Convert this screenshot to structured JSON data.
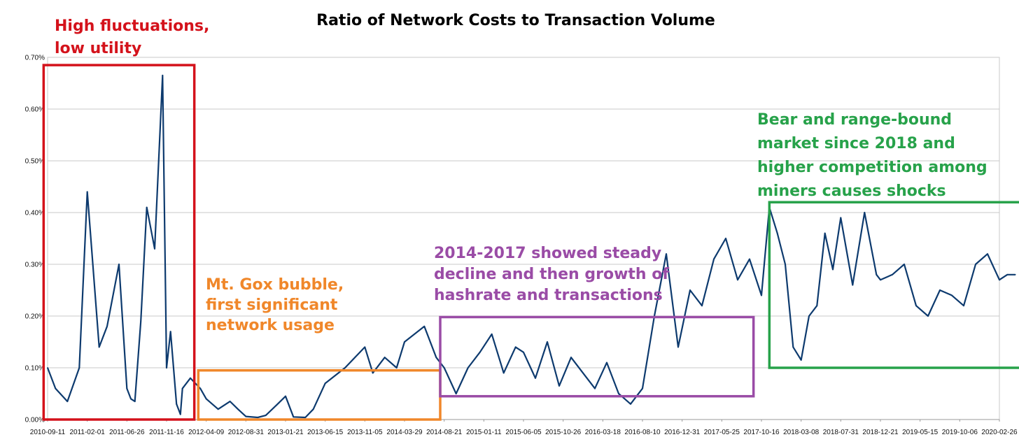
{
  "chart_data": {
    "type": "line",
    "title": "Ratio of Network Costs to Transaction Volume",
    "xlabel": "",
    "ylabel": "",
    "ylim": [
      0,
      0.7
    ],
    "y_ticks": [
      "0.00%",
      "0.10%",
      "0.20%",
      "0.30%",
      "0.40%",
      "0.50%",
      "0.60%",
      "0.70%"
    ],
    "x_ticks": [
      "2010-09-11",
      "2011-02-01",
      "2011-06-26",
      "2011-11-16",
      "2012-04-09",
      "2012-08-31",
      "2013-01-21",
      "2013-06-15",
      "2013-11-05",
      "2014-03-29",
      "2014-08-21",
      "2015-01-11",
      "2015-06-05",
      "2015-10-26",
      "2016-03-18",
      "2016-08-10",
      "2016-12-31",
      "2017-05-25",
      "2017-10-16",
      "2018-03-08",
      "2018-07-31",
      "2018-12-21",
      "2019-05-15",
      "2019-10-06",
      "2020-02-26"
    ],
    "grid": "horizontal",
    "line_color": "#0d3a6e",
    "x": [
      0,
      0.2,
      0.5,
      0.8,
      1.0,
      1.3,
      1.5,
      1.8,
      2.0,
      2.1,
      2.2,
      2.35,
      2.5,
      2.7,
      2.9,
      3.0,
      3.1,
      3.25,
      3.35,
      3.4,
      3.6,
      3.85,
      4.0,
      4.3,
      4.6,
      4.8,
      5.0,
      5.3,
      5.5,
      5.8,
      6.0,
      6.2,
      6.5,
      6.7,
      7.0,
      7.5,
      8.0,
      8.2,
      8.5,
      8.8,
      9.0,
      9.5,
      9.8,
      10.0,
      10.3,
      10.6,
      10.9,
      11.2,
      11.5,
      11.8,
      12.0,
      12.3,
      12.6,
      12.9,
      13.2,
      13.5,
      13.8,
      14.1,
      14.4,
      14.7,
      15.0,
      15.3,
      15.6,
      15.9,
      16.2,
      16.5,
      16.8,
      17.1,
      17.4,
      17.7,
      18.0,
      18.2,
      18.4,
      18.6,
      18.8,
      19.0,
      19.2,
      19.4,
      19.6,
      19.8,
      20.0,
      20.3,
      20.6,
      20.9,
      21.0,
      21.3,
      21.6,
      21.9,
      22.2,
      22.5,
      22.8,
      23.1,
      23.4,
      23.7,
      24.0,
      24.2,
      24.4
    ],
    "values": [
      0.1,
      0.06,
      0.035,
      0.1,
      0.44,
      0.14,
      0.18,
      0.3,
      0.06,
      0.04,
      0.035,
      0.19,
      0.41,
      0.33,
      0.665,
      0.1,
      0.17,
      0.03,
      0.01,
      0.06,
      0.08,
      0.06,
      0.04,
      0.02,
      0.035,
      0.02,
      0.006,
      0.004,
      0.008,
      0.03,
      0.045,
      0.005,
      0.004,
      0.02,
      0.07,
      0.1,
      0.14,
      0.09,
      0.12,
      0.1,
      0.15,
      0.18,
      0.12,
      0.1,
      0.05,
      0.1,
      0.13,
      0.165,
      0.09,
      0.14,
      0.13,
      0.08,
      0.15,
      0.065,
      0.12,
      0.09,
      0.06,
      0.11,
      0.05,
      0.03,
      0.06,
      0.2,
      0.32,
      0.14,
      0.25,
      0.22,
      0.31,
      0.35,
      0.27,
      0.31,
      0.24,
      0.41,
      0.36,
      0.3,
      0.14,
      0.115,
      0.2,
      0.22,
      0.36,
      0.29,
      0.39,
      0.26,
      0.4,
      0.28,
      0.27,
      0.28,
      0.3,
      0.22,
      0.2,
      0.25,
      0.24,
      0.22,
      0.3,
      0.32,
      0.27,
      0.28,
      0.28
    ],
    "annotations": [
      {
        "text_lines": [
          "High fluctuations,",
          "low utility"
        ],
        "color": "#d4121b",
        "box_x": [
          -0.1,
          3.7
        ],
        "box_y": [
          0.0,
          0.685
        ]
      },
      {
        "text_lines": [
          "Mt. Gox bubble,",
          "first significant",
          "network usage"
        ],
        "color": "#f0872a",
        "box_x": [
          3.8,
          9.9
        ],
        "box_y": [
          0.0,
          0.095
        ]
      },
      {
        "text_lines": [
          "2014-2017 showed steady",
          "decline and then growth of",
          "hashrate and transactions"
        ],
        "color": "#9a4ca6",
        "box_x": [
          9.9,
          17.8
        ],
        "box_y": [
          0.045,
          0.198
        ]
      },
      {
        "text_lines": [
          "Bear and range-bound",
          "market since 2018 and",
          "higher competition among",
          "miners causes shocks"
        ],
        "color": "#27a24a",
        "box_x": [
          18.2,
          24.6
        ],
        "box_y": [
          0.1,
          0.42
        ]
      }
    ]
  }
}
